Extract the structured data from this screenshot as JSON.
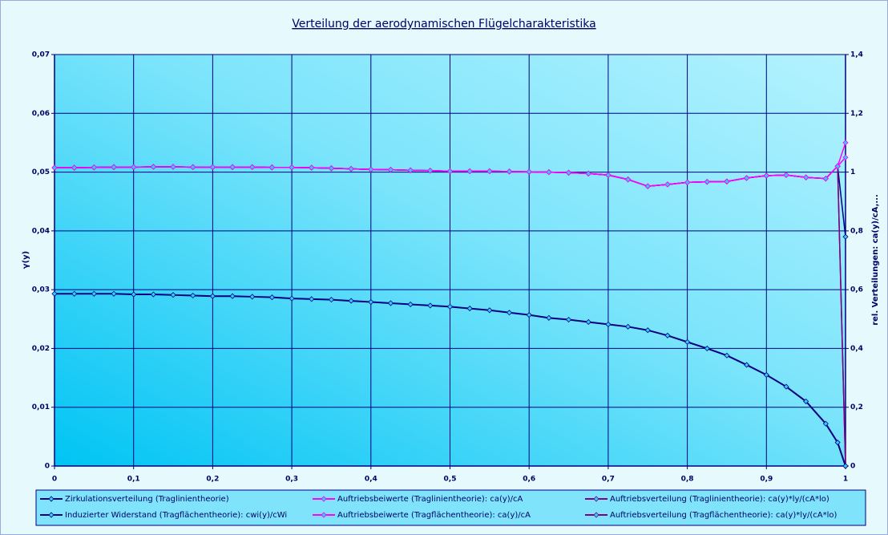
{
  "chart_data": {
    "type": "line",
    "title": "Verteilung der aerodynamischen Flügelcharakteristika",
    "ylabel": "γ(y)",
    "y2label": "rel. Verteilungen: ca(y)/cA,...",
    "x": [
      0,
      0.025,
      0.05,
      0.075,
      0.1,
      0.125,
      0.15,
      0.175,
      0.2,
      0.225,
      0.25,
      0.275,
      0.3,
      0.325,
      0.35,
      0.375,
      0.4,
      0.425,
      0.45,
      0.475,
      0.5,
      0.525,
      0.55,
      0.575,
      0.6,
      0.625,
      0.65,
      0.675,
      0.7,
      0.725,
      0.75,
      0.775,
      0.8,
      0.825,
      0.85,
      0.875,
      0.9,
      0.925,
      0.95,
      0.975,
      0.99,
      1
    ],
    "xlim": [
      0,
      1
    ],
    "xticks": [
      0,
      {
        "value": 0.1,
        "label": "0,1"
      },
      {
        "value": 0.2,
        "label": "0,2"
      },
      {
        "value": 0.3,
        "label": "0,3"
      },
      {
        "value": 0.4,
        "label": "0,4"
      },
      {
        "value": 0.5,
        "label": "0,5"
      },
      {
        "value": 0.6,
        "label": "0,6"
      },
      {
        "value": 0.7,
        "label": "0,7"
      },
      {
        "value": 0.8,
        "label": "0,8"
      },
      {
        "value": 0.9,
        "label": "0,9"
      },
      1
    ],
    "ylim": [
      0,
      0.07
    ],
    "yticks": [
      0,
      {
        "value": 0.01,
        "label": "0,01"
      },
      {
        "value": 0.02,
        "label": "0,02"
      },
      {
        "value": 0.03,
        "label": "0,03"
      },
      {
        "value": 0.04,
        "label": "0,04"
      },
      {
        "value": 0.05,
        "label": "0,05"
      },
      {
        "value": 0.06,
        "label": "0,06"
      },
      {
        "value": 0.07,
        "label": "0,07"
      }
    ],
    "y2lim": [
      0,
      1.4
    ],
    "y2ticks": [
      0,
      {
        "value": 0.2,
        "label": "0,2"
      },
      {
        "value": 0.4,
        "label": "0,4"
      },
      {
        "value": 0.6,
        "label": "0,6"
      },
      {
        "value": 0.8,
        "label": "0,8"
      },
      1,
      {
        "value": 1.2,
        "label": "1,2"
      },
      {
        "value": 1.4,
        "label": "1,4"
      }
    ],
    "grid": true,
    "legend": "bottom",
    "marker_color": "#33ccff",
    "series": [
      {
        "name": "Zirkulationsverteilung (Traglinientheorie)",
        "color": "#000080",
        "values": [
          0.0293,
          0.0293,
          0.0293,
          0.0293,
          0.0292,
          0.0292,
          0.0291,
          0.029,
          0.0289,
          0.0289,
          0.0288,
          0.0287,
          0.0285,
          0.0284,
          0.0283,
          0.0281,
          0.0279,
          0.0277,
          0.0275,
          0.0273,
          0.0271,
          0.0268,
          0.0265,
          0.0261,
          0.0257,
          0.0252,
          0.0249,
          0.0245,
          0.0241,
          0.0237,
          0.0231,
          0.0222,
          0.0211,
          0.02,
          0.0188,
          0.0172,
          0.0155,
          0.0135,
          0.011,
          0.0072,
          0.004,
          0
        ]
      },
      {
        "name": "Auftriebsbeiwerte (Traglinientheorie): ca(y)/cA",
        "color": "#ff00ff",
        "axis": "y2",
        "values": [
          1.015,
          1.015,
          1.016,
          1.017,
          1.017,
          1.018,
          1.018,
          1.017,
          1.017,
          1.017,
          1.017,
          1.016,
          1.016,
          1.015,
          1.013,
          1.011,
          1.009,
          1.008,
          1.006,
          1.005,
          1.003,
          1.003,
          1.003,
          1.002,
          1.001,
          1.0,
          0.998,
          0.995,
          0.99,
          0.975,
          0.952,
          0.958,
          0.965,
          0.967,
          0.968,
          0.98,
          0.988,
          0.99,
          0.982,
          0.978,
          1.02,
          1.05
        ]
      },
      {
        "name": "Auftriebsverteilung (Traglinientheorie): ca(y)*ly/(cA*lo)",
        "color": "#800080",
        "axis": "y2",
        "values": [
          1.015,
          1.015,
          1.016,
          1.017,
          1.017,
          1.018,
          1.018,
          1.017,
          1.017,
          1.017,
          1.017,
          1.016,
          1.016,
          1.015,
          1.013,
          1.011,
          1.009,
          1.008,
          1.006,
          1.005,
          1.003,
          1.003,
          1.003,
          1.002,
          1.001,
          1.0,
          0.998,
          0.995,
          0.99,
          0.975,
          0.952,
          0.958,
          0.965,
          0.967,
          0.968,
          0.98,
          0.988,
          0.99,
          0.982,
          0.978,
          1.02,
          0
        ]
      },
      {
        "name": "Induzierter Widerstand (Tragflächentheorie): cwi(y)/cWi",
        "color": "#000080",
        "axis": "y2",
        "values": [
          1.015,
          1.015,
          1.016,
          1.017,
          1.017,
          1.018,
          1.018,
          1.017,
          1.017,
          1.017,
          1.017,
          1.016,
          1.016,
          1.015,
          1.013,
          1.011,
          1.009,
          1.008,
          1.006,
          1.005,
          1.003,
          1.003,
          1.003,
          1.002,
          1.001,
          1.0,
          0.998,
          0.995,
          0.99,
          0.975,
          0.952,
          0.958,
          0.965,
          0.967,
          0.968,
          0.98,
          0.988,
          0.99,
          0.982,
          0.978,
          1.02,
          0.78
        ]
      },
      {
        "name": "Auftriebsbeiwerte (Tragflächentheorie): ca(y)/cA",
        "color": "#ff00ff",
        "axis": "y2",
        "values": [
          1.015,
          1.015,
          1.016,
          1.017,
          1.017,
          1.018,
          1.018,
          1.017,
          1.017,
          1.017,
          1.017,
          1.016,
          1.016,
          1.015,
          1.013,
          1.011,
          1.009,
          1.008,
          1.006,
          1.005,
          1.003,
          1.003,
          1.003,
          1.002,
          1.001,
          1.0,
          0.998,
          0.995,
          0.99,
          0.975,
          0.952,
          0.958,
          0.965,
          0.967,
          0.968,
          0.98,
          0.988,
          0.99,
          0.982,
          0.978,
          1.02,
          1.1
        ]
      },
      {
        "name": "Auftriebsverteilung (Tragflächentheorie): ca(y)*ly/(cA*lo)",
        "color": "#800080",
        "axis": "y2",
        "values": [
          1.015,
          1.015,
          1.016,
          1.017,
          1.017,
          1.018,
          1.018,
          1.017,
          1.017,
          1.017,
          1.017,
          1.016,
          1.016,
          1.015,
          1.013,
          1.011,
          1.009,
          1.008,
          1.006,
          1.005,
          1.003,
          1.003,
          1.003,
          1.002,
          1.001,
          1.0,
          0.998,
          0.995,
          0.99,
          0.975,
          0.952,
          0.958,
          0.965,
          0.967,
          0.968,
          0.98,
          0.988,
          0.99,
          0.982,
          0.978,
          1.02,
          0
        ]
      }
    ]
  }
}
